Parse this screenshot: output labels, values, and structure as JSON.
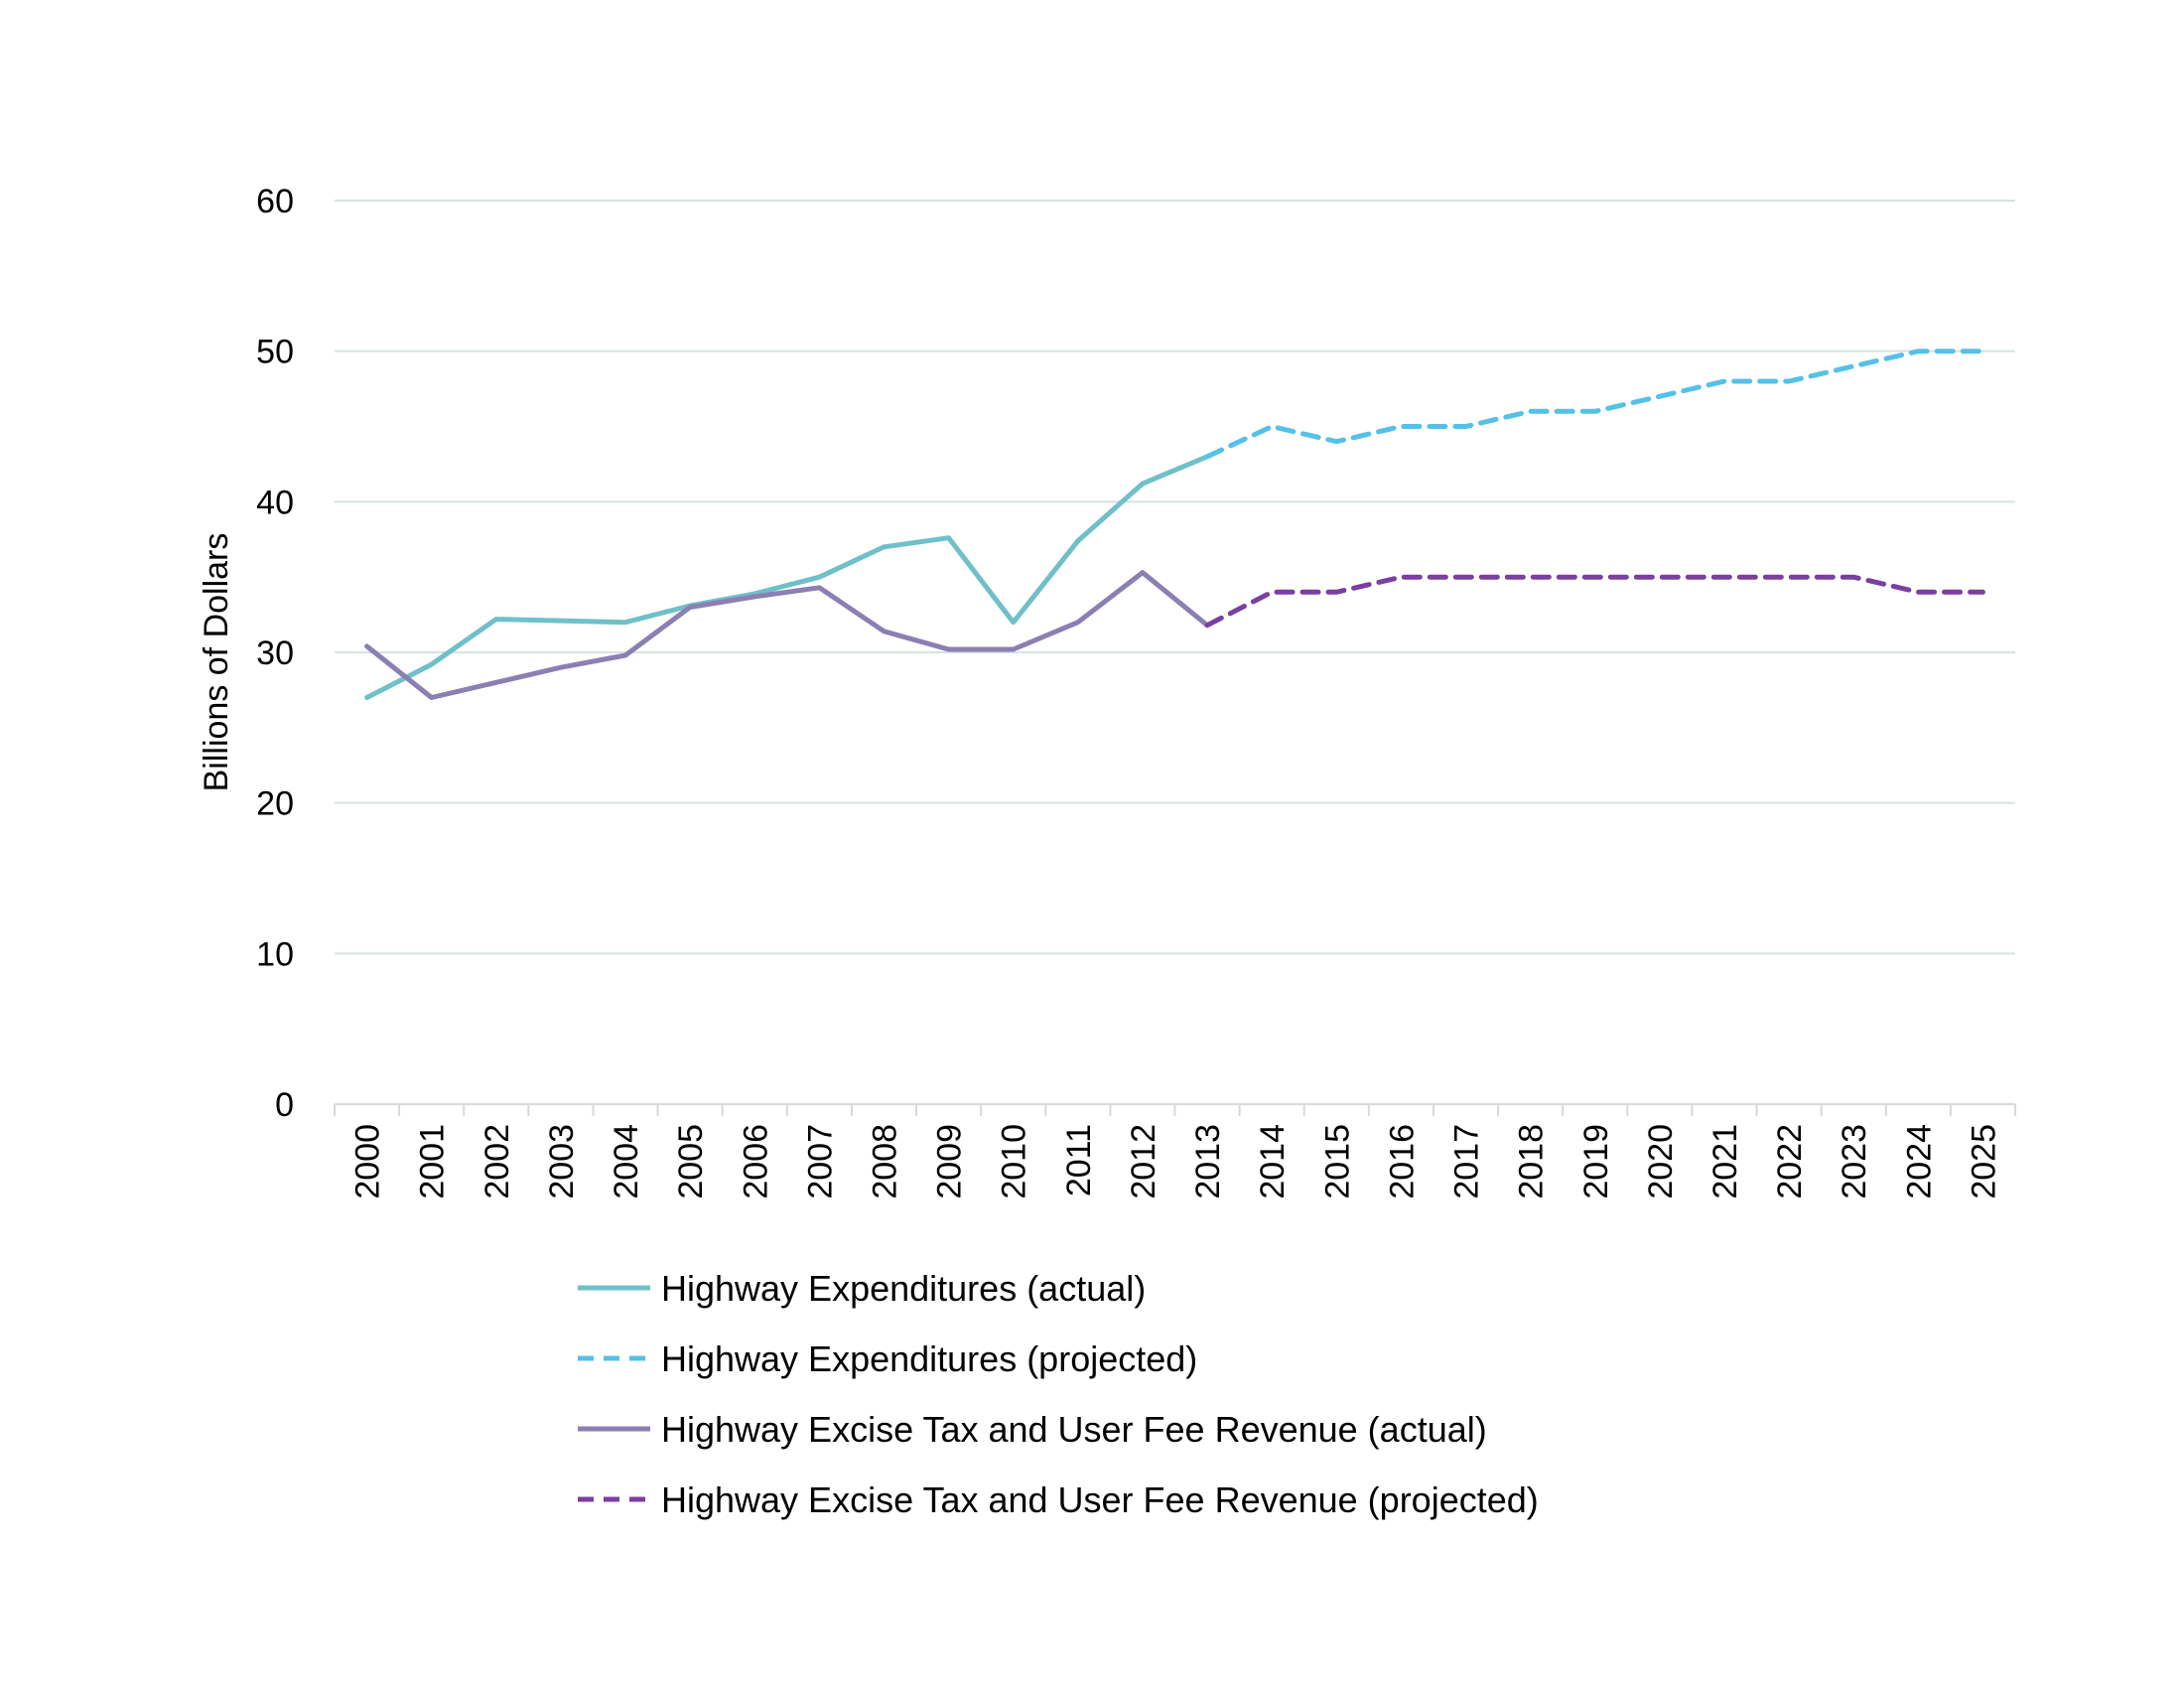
{
  "chart_data": {
    "type": "line",
    "title": "",
    "xlabel": "",
    "ylabel": "Billions of Dollars",
    "ylim": [
      0,
      60
    ],
    "yticks": [
      "0",
      "10",
      "20",
      "30",
      "40",
      "50",
      "60"
    ],
    "categories": [
      "2000",
      "2001",
      "2002",
      "2003",
      "2004",
      "2005",
      "2006",
      "2007",
      "2008",
      "2009",
      "2010",
      "2011",
      "2012",
      "2013",
      "2014",
      "2015",
      "2016",
      "2017",
      "2018",
      "2019",
      "2020",
      "2021",
      "2022",
      "2023",
      "2024",
      "2025"
    ],
    "grid": true,
    "legend_position": "bottom",
    "series": [
      {
        "name": "Highway Expenditures (actual)",
        "style": "solid",
        "color": "#6fc0c9",
        "values": [
          27.0,
          29.2,
          32.2,
          32.1,
          32.0,
          33.1,
          33.9,
          35.0,
          37.0,
          37.6,
          32.0,
          37.4,
          41.2,
          43.0,
          null,
          null,
          null,
          null,
          null,
          null,
          null,
          null,
          null,
          null,
          null,
          null
        ]
      },
      {
        "name": "Highway Expenditures (projected)",
        "style": "dashed",
        "color": "#55c1e8",
        "values": [
          null,
          null,
          null,
          null,
          null,
          null,
          null,
          null,
          null,
          null,
          null,
          null,
          null,
          43.0,
          45.0,
          44.0,
          45.0,
          45.0,
          46.0,
          46.0,
          47.0,
          48.0,
          48.0,
          49.0,
          50.0,
          50.0
        ]
      },
      {
        "name": "Highway Excise Tax and User Fee Revenue (actual)",
        "style": "solid",
        "color": "#8c7fb3",
        "values": [
          30.4,
          27.0,
          28.0,
          29.0,
          29.8,
          33.0,
          33.7,
          34.3,
          31.4,
          30.2,
          30.2,
          32.0,
          35.3,
          31.8,
          null,
          null,
          null,
          null,
          null,
          null,
          null,
          null,
          null,
          null,
          null,
          null
        ]
      },
      {
        "name": "Highway Excise Tax and User Fee Revenue (projected)",
        "style": "dashed",
        "color": "#7a3fa0",
        "values": [
          null,
          null,
          null,
          null,
          null,
          null,
          null,
          null,
          null,
          null,
          null,
          null,
          null,
          31.8,
          34.0,
          34.0,
          35.0,
          35.0,
          35.0,
          35.0,
          35.0,
          35.0,
          35.0,
          35.0,
          34.0,
          34.0
        ]
      }
    ]
  }
}
